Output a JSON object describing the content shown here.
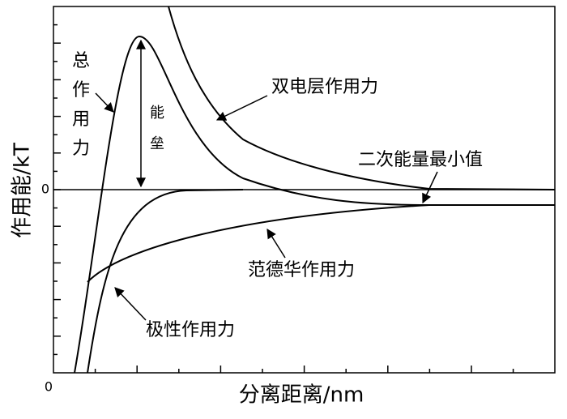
{
  "axes": {
    "y_label": "作用能/kT",
    "y_zero": "0",
    "x_label": "分离距离/nm",
    "x_zero": "0"
  },
  "labels": {
    "total": [
      "总",
      "作",
      "用",
      "力"
    ],
    "barrier": [
      "能",
      "垒"
    ],
    "double_layer": "双电层作用力",
    "secondary_minimum": "二次能量最小值",
    "van_der_waals": "范德华作用力",
    "polar": "极性作用力"
  }
}
